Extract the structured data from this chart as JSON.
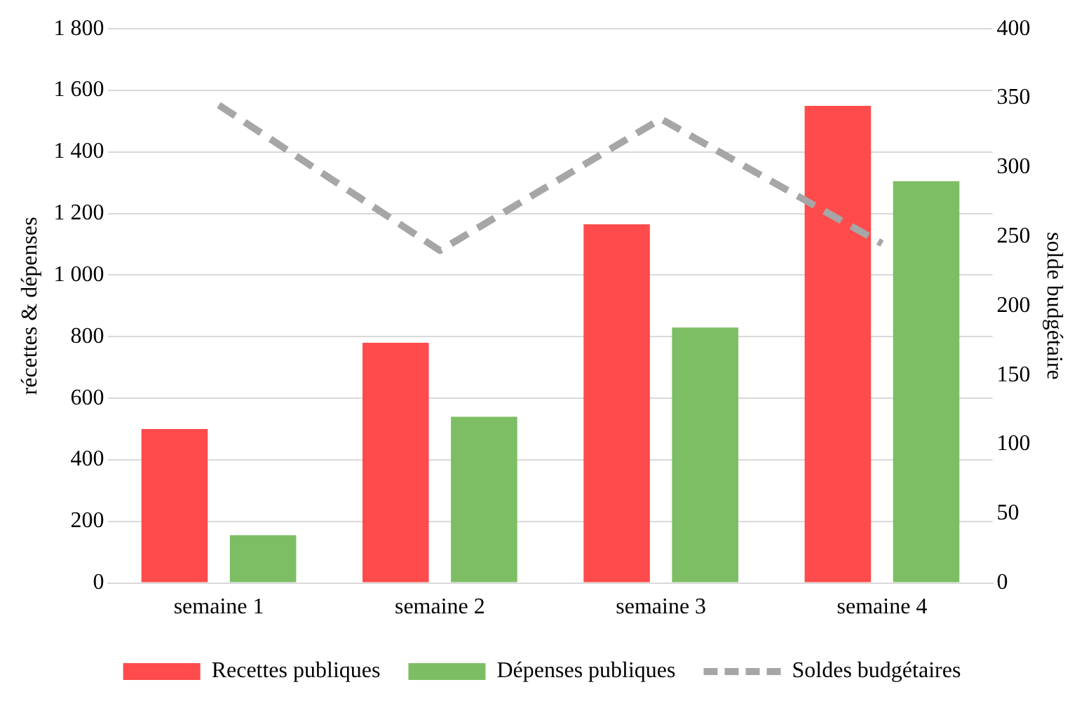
{
  "chart_data": {
    "type": "bar",
    "ylabel": "récettes & dépenses",
    "y2label": "solde budgétaire",
    "categories": [
      "semaine 1",
      "semaine 2",
      "semaine 3",
      "semaine 4"
    ],
    "series": [
      {
        "name": "Recettes publiques",
        "color": "#ff4b4b",
        "values": [
          500,
          780,
          1165,
          1550
        ]
      },
      {
        "name": "Dépenses publiques",
        "color": "#7dbe64",
        "values": [
          155,
          540,
          830,
          1305
        ]
      },
      {
        "name": "Soldes budgétaires",
        "type": "line",
        "axis": "y2",
        "color": "#a6a6a6",
        "line_style": "dashed",
        "values": [
          345,
          240,
          335,
          245
        ]
      }
    ],
    "ylim": [
      0,
      1800
    ],
    "yticks": [
      0,
      200,
      400,
      600,
      800,
      {
        "value": 1000,
        "label": "1 000"
      },
      {
        "value": 1200,
        "label": "1 200"
      },
      {
        "value": 1400,
        "label": "1 400"
      },
      {
        "value": 1600,
        "label": "1 600"
      },
      {
        "value": 1800,
        "label": "1 800"
      }
    ],
    "y2lim": [
      0,
      400
    ],
    "y2ticks": [
      0,
      50,
      100,
      150,
      200,
      250,
      300,
      350,
      400
    ],
    "grid": "y",
    "legend": "bottom",
    "marker": "none"
  }
}
